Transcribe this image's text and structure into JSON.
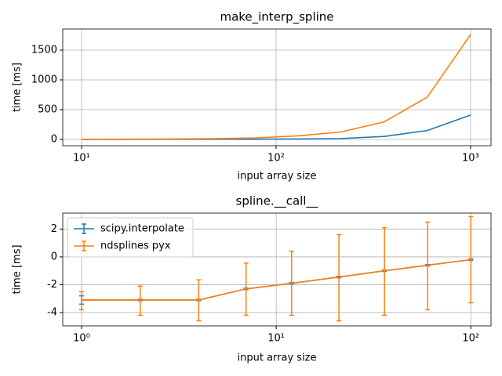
{
  "chart_data": [
    {
      "type": "line",
      "title": "make_interp_spline",
      "xlabel": "input array size",
      "ylabel": "time [ms]",
      "xscale": "log",
      "grid": true,
      "x": [
        10,
        16.7,
        27.8,
        46.4,
        77.4,
        129,
        215,
        359,
        599,
        1000
      ],
      "series": [
        {
          "color": "#1f77b4",
          "values": [
            1,
            1,
            2,
            3,
            5,
            8,
            15,
            50,
            150,
            410
          ]
        },
        {
          "color": "#ff7f0e",
          "values": [
            2,
            4,
            7,
            12,
            25,
            60,
            125,
            295,
            710,
            1760
          ]
        }
      ],
      "xlim": [
        8.0,
        1274
      ],
      "ylim": [
        -105,
        1855
      ],
      "xticks": [
        {
          "value": 10,
          "label": "10¹"
        },
        {
          "value": 100,
          "label": "10²"
        },
        {
          "value": 1000,
          "label": "10³"
        }
      ],
      "yticks": [
        0,
        500,
        1000,
        1500
      ]
    },
    {
      "type": "line",
      "title": "spline.__call__",
      "xlabel": "input array size",
      "ylabel": "time [ms]",
      "xscale": "log",
      "grid": true,
      "legend": "upper left",
      "x": [
        1,
        2,
        4,
        7,
        12,
        21,
        36,
        60,
        100
      ],
      "series": [
        {
          "name": "scipy.interpolate",
          "color": "#1f77b4",
          "values": [
            -3.1,
            -3.1,
            -3.1,
            -2.3,
            -1.9,
            -1.45,
            -1.0,
            -0.6,
            -0.2
          ],
          "errors_minus": [
            0.3,
            0.05,
            0.05,
            0.05,
            0.05,
            0.05,
            0.05,
            0.05,
            0.05
          ],
          "errors_plus": [
            0.3,
            0.05,
            0.05,
            0.05,
            0.05,
            0.05,
            0.05,
            0.05,
            0.05
          ]
        },
        {
          "name": "ndsplines pyx",
          "color": "#ff7f0e",
          "values": [
            -3.1,
            -3.1,
            -3.1,
            -2.3,
            -1.9,
            -1.45,
            -1.0,
            -0.6,
            -0.2
          ],
          "errors_minus": [
            0.7,
            1.1,
            1.5,
            1.9,
            2.3,
            3.15,
            3.2,
            3.2,
            3.1
          ],
          "errors_plus": [
            0.6,
            1.0,
            1.45,
            1.85,
            2.3,
            3.05,
            3.1,
            3.1,
            3.1
          ]
        }
      ],
      "xlim": [
        0.8,
        127
      ],
      "ylim": [
        -4.96,
        3.15
      ],
      "xticks": [
        {
          "value": 1,
          "label": "10⁰"
        },
        {
          "value": 10,
          "label": "10¹"
        },
        {
          "value": 100,
          "label": "10²"
        }
      ],
      "yticks": [
        -4,
        -2,
        0,
        2
      ]
    }
  ]
}
